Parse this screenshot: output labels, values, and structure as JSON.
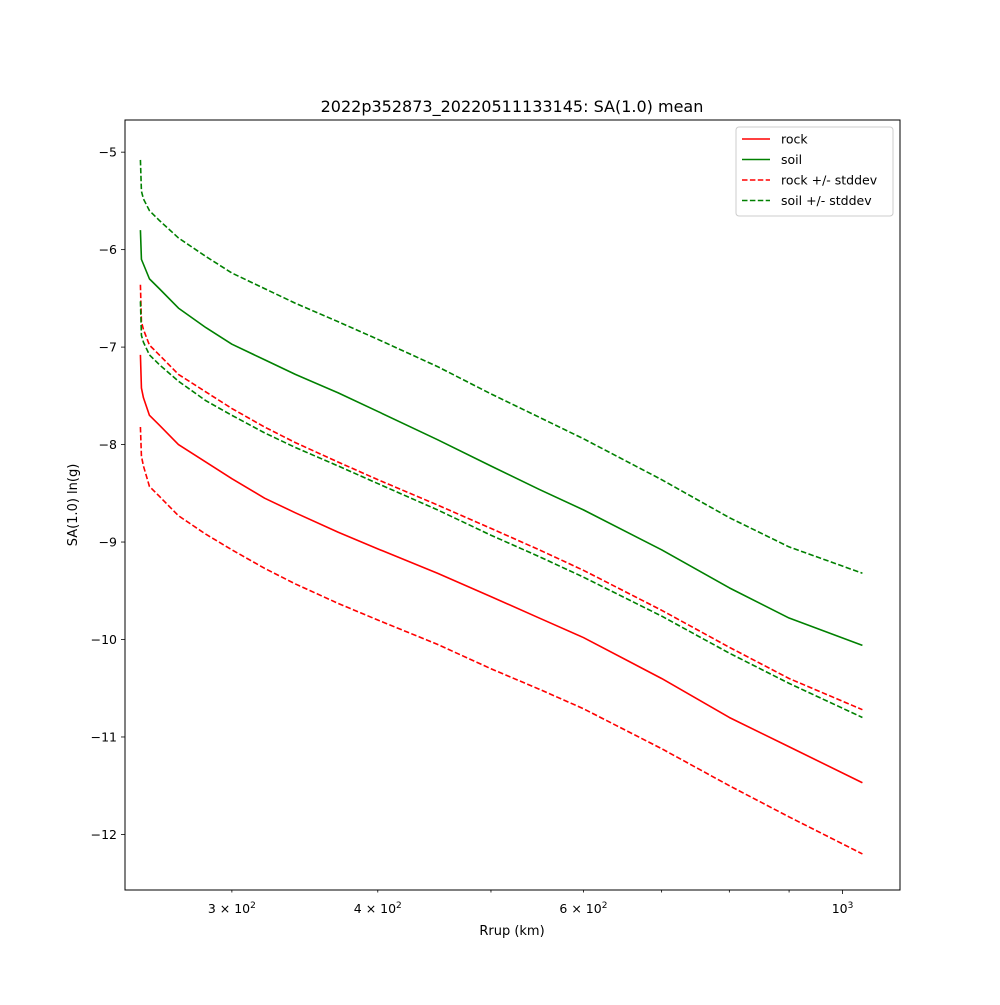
{
  "chart_data": {
    "type": "line",
    "title": "2022p352873_20220511133145: SA(1.0) mean",
    "xlabel": "Rrup (km)",
    "ylabel": "SA(1.0) ln(g)",
    "xscale": "log",
    "xlim": [
      243,
      1120
    ],
    "ylim": [
      -12.57,
      -4.67
    ],
    "grid": false,
    "legend_position": "top-right",
    "xticks": [
      {
        "value": 300,
        "mantissa": "3",
        "base": "10",
        "exponent": "2",
        "major": false
      },
      {
        "value": 400,
        "mantissa": "4",
        "base": "10",
        "exponent": "2",
        "major": false
      },
      {
        "value": 600,
        "mantissa": "6",
        "base": "10",
        "exponent": "2",
        "major": false
      },
      {
        "value": 1000,
        "mantissa": "",
        "base": "10",
        "exponent": "3",
        "major": true
      }
    ],
    "xminor_unlabeled": [
      500,
      700,
      800,
      900
    ],
    "yticks": [
      {
        "value": -5,
        "label": "−5"
      },
      {
        "value": -6,
        "label": "−6"
      },
      {
        "value": -7,
        "label": "−7"
      },
      {
        "value": -8,
        "label": "−8"
      },
      {
        "value": -9,
        "label": "−9"
      },
      {
        "value": -10,
        "label": "−10"
      },
      {
        "value": -11,
        "label": "−11"
      },
      {
        "value": -12,
        "label": "−12"
      }
    ],
    "x": [
      250.5,
      251,
      252,
      255,
      260,
      270,
      285,
      300,
      320,
      340,
      370,
      400,
      450,
      500,
      550,
      600,
      700,
      800,
      900,
      1040
    ],
    "series": [
      {
        "name": "rock",
        "color": "#ff0000",
        "dash": "solid",
        "values": [
          -7.08,
          -7.42,
          -7.52,
          -7.7,
          -7.8,
          -8.0,
          -8.18,
          -8.35,
          -8.55,
          -8.7,
          -8.9,
          -9.07,
          -9.32,
          -9.56,
          -9.78,
          -9.98,
          -10.4,
          -10.8,
          -11.1,
          -11.47
        ]
      },
      {
        "name": "soil",
        "color": "#008000",
        "dash": "solid",
        "values": [
          -5.8,
          -6.1,
          -6.15,
          -6.3,
          -6.4,
          -6.6,
          -6.8,
          -6.97,
          -7.13,
          -7.28,
          -7.47,
          -7.66,
          -7.95,
          -8.22,
          -8.46,
          -8.67,
          -9.08,
          -9.47,
          -9.78,
          -10.06
        ]
      },
      {
        "name": "rock +/- stddev",
        "color": "#ff0000",
        "dash": "dashed",
        "values": [
          -6.36,
          -6.74,
          -6.82,
          -6.98,
          -7.08,
          -7.28,
          -7.46,
          -7.63,
          -7.82,
          -7.98,
          -8.18,
          -8.36,
          -8.62,
          -8.86,
          -9.08,
          -9.29,
          -9.7,
          -10.08,
          -10.4,
          -10.72
        ]
      },
      {
        "name": "",
        "color": "#ff0000",
        "dash": "dashed",
        "values": [
          -7.82,
          -8.12,
          -8.22,
          -8.43,
          -8.53,
          -8.73,
          -8.92,
          -9.08,
          -9.27,
          -9.43,
          -9.63,
          -9.8,
          -10.05,
          -10.3,
          -10.51,
          -10.71,
          -11.12,
          -11.5,
          -11.82,
          -12.2
        ]
      },
      {
        "name": "soil +/- stddev",
        "color": "#008000",
        "dash": "dashed",
        "values": [
          -6.53,
          -6.88,
          -6.95,
          -7.08,
          -7.18,
          -7.35,
          -7.55,
          -7.7,
          -7.88,
          -8.03,
          -8.22,
          -8.4,
          -8.67,
          -8.93,
          -9.15,
          -9.36,
          -9.76,
          -10.14,
          -10.45,
          -10.8
        ]
      },
      {
        "name": "",
        "color": "#008000",
        "dash": "dashed",
        "values": [
          -5.08,
          -5.4,
          -5.48,
          -5.6,
          -5.7,
          -5.88,
          -6.07,
          -6.24,
          -6.4,
          -6.55,
          -6.74,
          -6.92,
          -7.2,
          -7.48,
          -7.72,
          -7.94,
          -8.36,
          -8.75,
          -9.05,
          -9.32
        ]
      }
    ],
    "legend": [
      {
        "label": "rock",
        "color": "#ff0000",
        "dash": "solid"
      },
      {
        "label": "soil",
        "color": "#008000",
        "dash": "solid"
      },
      {
        "label": "rock +/- stddev",
        "color": "#ff0000",
        "dash": "dashed"
      },
      {
        "label": "soil +/- stddev",
        "color": "#008000",
        "dash": "dashed"
      }
    ]
  }
}
